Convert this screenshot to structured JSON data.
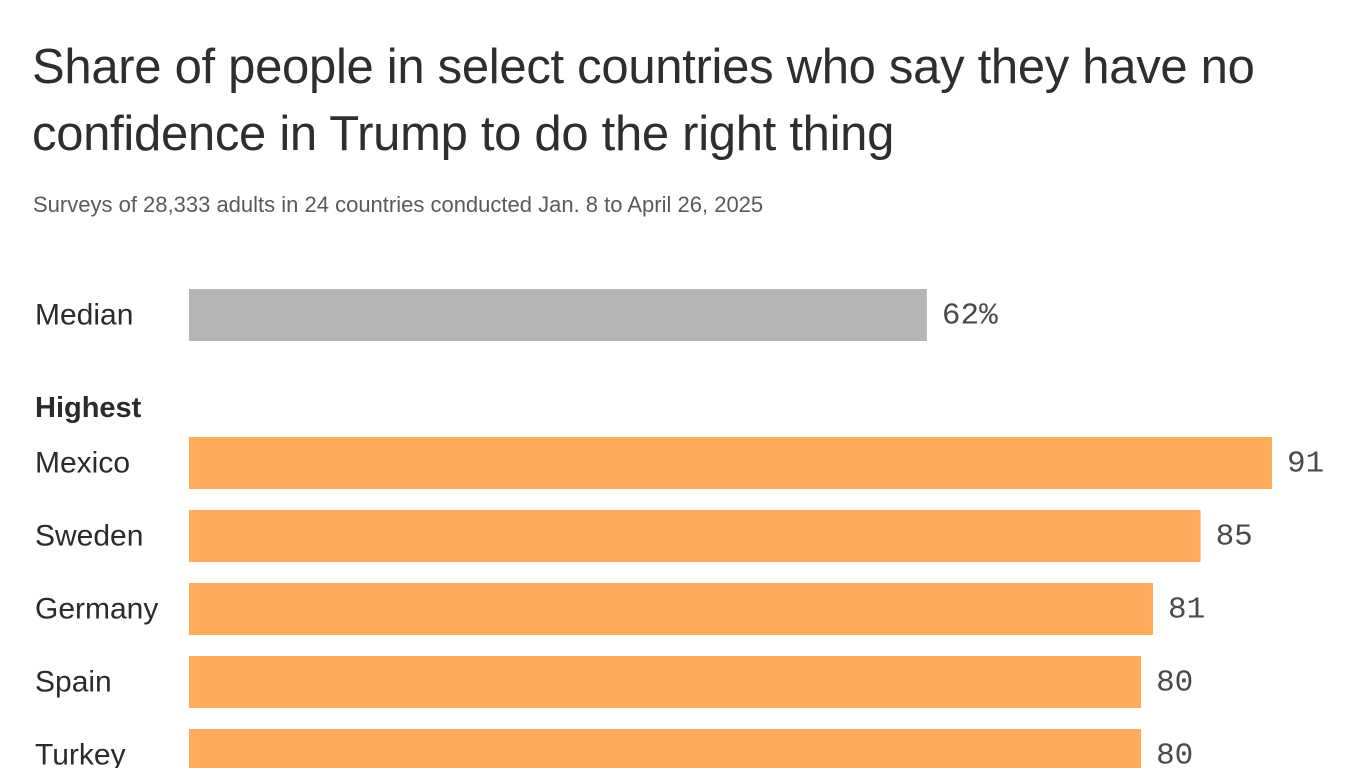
{
  "chart_data": {
    "type": "bar",
    "orientation": "horizontal",
    "title": "Share of people in select countries who say they have no confidence in Trump to do the right thing",
    "subtitle": "Surveys of 28,333 adults in 24 countries conducted Jan. 8 to April 26, 2025",
    "xlim": [
      0,
      91
    ],
    "grid": false,
    "legend": "none",
    "groups": [
      {
        "label": "",
        "color": "#b5b5b5",
        "categories": [
          "Median"
        ],
        "values": [
          62
        ],
        "value_labels": [
          "62%"
        ]
      },
      {
        "label": "Highest",
        "color": "#ffad5c",
        "categories": [
          "Mexico",
          "Sweden",
          "Germany",
          "Spain",
          "Turkey"
        ],
        "values": [
          91,
          85,
          81,
          80,
          80
        ],
        "value_labels": [
          "91",
          "85",
          "81",
          "80",
          "80"
        ]
      }
    ]
  }
}
